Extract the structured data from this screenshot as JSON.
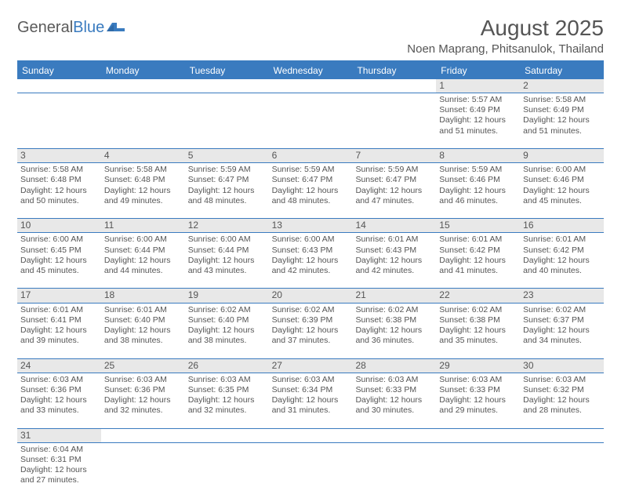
{
  "logo": {
    "text1": "General",
    "text2": "Blue"
  },
  "title": "August 2025",
  "location": "Noen Maprang, Phitsanulok, Thailand",
  "colors": {
    "accent": "#3a7bbf",
    "header_text": "#ffffff",
    "body_text": "#555555",
    "daynum_bg": "#e8e8e8",
    "background": "#ffffff"
  },
  "day_names": [
    "Sunday",
    "Monday",
    "Tuesday",
    "Wednesday",
    "Thursday",
    "Friday",
    "Saturday"
  ],
  "weeks": [
    [
      null,
      null,
      null,
      null,
      null,
      {
        "n": "1",
        "sr": "5:57 AM",
        "ss": "6:49 PM",
        "dl": "12 hours and 51 minutes."
      },
      {
        "n": "2",
        "sr": "5:58 AM",
        "ss": "6:49 PM",
        "dl": "12 hours and 51 minutes."
      }
    ],
    [
      {
        "n": "3",
        "sr": "5:58 AM",
        "ss": "6:48 PM",
        "dl": "12 hours and 50 minutes."
      },
      {
        "n": "4",
        "sr": "5:58 AM",
        "ss": "6:48 PM",
        "dl": "12 hours and 49 minutes."
      },
      {
        "n": "5",
        "sr": "5:59 AM",
        "ss": "6:47 PM",
        "dl": "12 hours and 48 minutes."
      },
      {
        "n": "6",
        "sr": "5:59 AM",
        "ss": "6:47 PM",
        "dl": "12 hours and 48 minutes."
      },
      {
        "n": "7",
        "sr": "5:59 AM",
        "ss": "6:47 PM",
        "dl": "12 hours and 47 minutes."
      },
      {
        "n": "8",
        "sr": "5:59 AM",
        "ss": "6:46 PM",
        "dl": "12 hours and 46 minutes."
      },
      {
        "n": "9",
        "sr": "6:00 AM",
        "ss": "6:46 PM",
        "dl": "12 hours and 45 minutes."
      }
    ],
    [
      {
        "n": "10",
        "sr": "6:00 AM",
        "ss": "6:45 PM",
        "dl": "12 hours and 45 minutes."
      },
      {
        "n": "11",
        "sr": "6:00 AM",
        "ss": "6:44 PM",
        "dl": "12 hours and 44 minutes."
      },
      {
        "n": "12",
        "sr": "6:00 AM",
        "ss": "6:44 PM",
        "dl": "12 hours and 43 minutes."
      },
      {
        "n": "13",
        "sr": "6:00 AM",
        "ss": "6:43 PM",
        "dl": "12 hours and 42 minutes."
      },
      {
        "n": "14",
        "sr": "6:01 AM",
        "ss": "6:43 PM",
        "dl": "12 hours and 42 minutes."
      },
      {
        "n": "15",
        "sr": "6:01 AM",
        "ss": "6:42 PM",
        "dl": "12 hours and 41 minutes."
      },
      {
        "n": "16",
        "sr": "6:01 AM",
        "ss": "6:42 PM",
        "dl": "12 hours and 40 minutes."
      }
    ],
    [
      {
        "n": "17",
        "sr": "6:01 AM",
        "ss": "6:41 PM",
        "dl": "12 hours and 39 minutes."
      },
      {
        "n": "18",
        "sr": "6:01 AM",
        "ss": "6:40 PM",
        "dl": "12 hours and 38 minutes."
      },
      {
        "n": "19",
        "sr": "6:02 AM",
        "ss": "6:40 PM",
        "dl": "12 hours and 38 minutes."
      },
      {
        "n": "20",
        "sr": "6:02 AM",
        "ss": "6:39 PM",
        "dl": "12 hours and 37 minutes."
      },
      {
        "n": "21",
        "sr": "6:02 AM",
        "ss": "6:38 PM",
        "dl": "12 hours and 36 minutes."
      },
      {
        "n": "22",
        "sr": "6:02 AM",
        "ss": "6:38 PM",
        "dl": "12 hours and 35 minutes."
      },
      {
        "n": "23",
        "sr": "6:02 AM",
        "ss": "6:37 PM",
        "dl": "12 hours and 34 minutes."
      }
    ],
    [
      {
        "n": "24",
        "sr": "6:03 AM",
        "ss": "6:36 PM",
        "dl": "12 hours and 33 minutes."
      },
      {
        "n": "25",
        "sr": "6:03 AM",
        "ss": "6:36 PM",
        "dl": "12 hours and 32 minutes."
      },
      {
        "n": "26",
        "sr": "6:03 AM",
        "ss": "6:35 PM",
        "dl": "12 hours and 32 minutes."
      },
      {
        "n": "27",
        "sr": "6:03 AM",
        "ss": "6:34 PM",
        "dl": "12 hours and 31 minutes."
      },
      {
        "n": "28",
        "sr": "6:03 AM",
        "ss": "6:33 PM",
        "dl": "12 hours and 30 minutes."
      },
      {
        "n": "29",
        "sr": "6:03 AM",
        "ss": "6:33 PM",
        "dl": "12 hours and 29 minutes."
      },
      {
        "n": "30",
        "sr": "6:03 AM",
        "ss": "6:32 PM",
        "dl": "12 hours and 28 minutes."
      }
    ],
    [
      {
        "n": "31",
        "sr": "6:04 AM",
        "ss": "6:31 PM",
        "dl": "12 hours and 27 minutes."
      },
      null,
      null,
      null,
      null,
      null,
      null
    ]
  ],
  "labels": {
    "sunrise": "Sunrise: ",
    "sunset": "Sunset: ",
    "daylight": "Daylight: "
  }
}
